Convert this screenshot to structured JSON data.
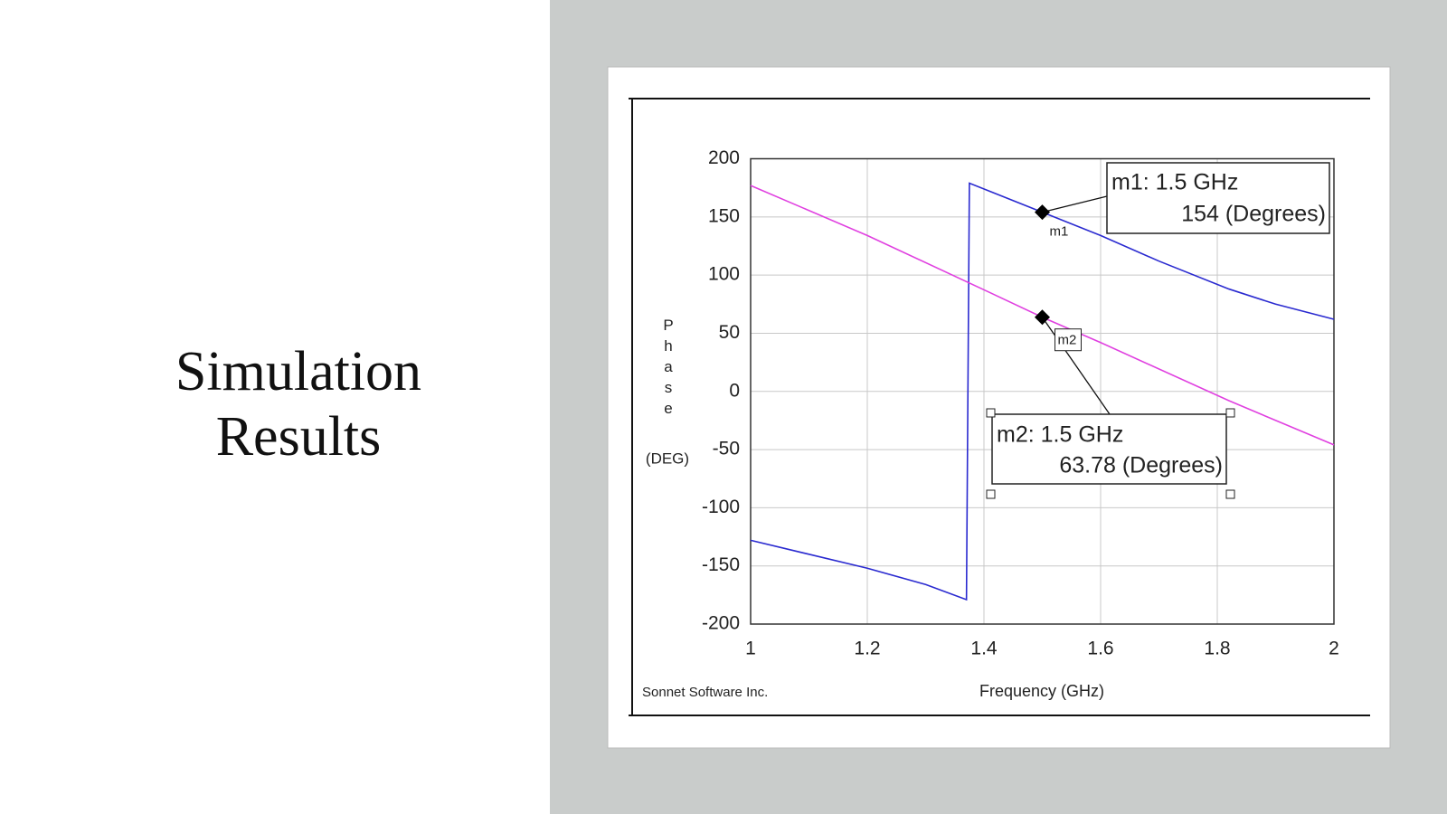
{
  "slide": {
    "title": "Simulation Results"
  },
  "chart_data": {
    "type": "line",
    "xlabel": "Frequency (GHz)",
    "ylabel": "Phase",
    "yunit": "(DEG)",
    "footer": "Sonnet Software Inc.",
    "xlim": [
      1,
      2
    ],
    "xticks": [
      1,
      1.2,
      1.4,
      1.6,
      1.8,
      2
    ],
    "ylim": [
      -200,
      200
    ],
    "yticks": [
      200,
      150,
      100,
      50,
      0,
      -50,
      -100,
      -150,
      -200
    ],
    "grid": true,
    "series": [
      {
        "color": "#2a2ad0",
        "x": [
          1,
          1.1,
          1.2,
          1.3,
          1.37,
          1.375,
          1.41,
          1.5,
          1.6,
          1.7,
          1.82,
          1.9,
          2
        ],
        "values": [
          -128,
          -140,
          -152,
          -166,
          -179,
          179,
          172,
          154,
          134,
          112,
          88,
          75,
          62
        ]
      },
      {
        "color": "#e040e0",
        "x": [
          1,
          1.2,
          1.41,
          1.5,
          1.6,
          1.82,
          2
        ],
        "values": [
          177,
          134,
          85,
          63.78,
          42,
          -8,
          -46
        ]
      }
    ],
    "annotations": [
      {
        "label": "m1",
        "x": 1.5,
        "y": 154,
        "text": "m1: 1.5 GHz",
        "value_text": "154  (Degrees)"
      },
      {
        "label": "m2",
        "x": 1.5,
        "y": 63.78,
        "text": "m2: 1.5 GHz",
        "value_text": "63.78  (Degrees)"
      }
    ]
  }
}
